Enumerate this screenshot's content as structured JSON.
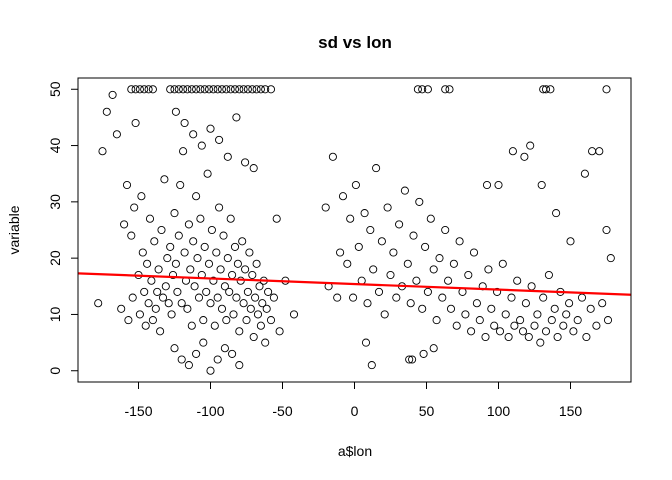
{
  "chart_data": {
    "type": "scatter",
    "title": "sd  vs lon",
    "xlabel": "a$lon",
    "ylabel": "variable",
    "xlim": [
      -192,
      192
    ],
    "ylim": [
      -2,
      52
    ],
    "x_ticks": [
      -150,
      -100,
      -50,
      0,
      50,
      100,
      150
    ],
    "y_ticks": [
      0,
      10,
      20,
      30,
      40,
      50
    ],
    "grid": false,
    "legend": "none",
    "marker": "open-circle",
    "fit_line": {
      "color": "#ff0000",
      "x": [
        -192,
        192
      ],
      "y": [
        17.3,
        13.5
      ]
    },
    "point_color": "#000000",
    "series": [
      {
        "values": [
          [
            -178,
            12
          ],
          [
            -175,
            39
          ],
          [
            -172,
            46
          ],
          [
            -168,
            49
          ],
          [
            -165,
            42
          ],
          [
            -162,
            11
          ],
          [
            -160,
            26
          ],
          [
            -158,
            33
          ],
          [
            -157,
            9
          ],
          [
            -155,
            24
          ],
          [
            -154,
            13
          ],
          [
            -153,
            29
          ],
          [
            -152,
            44
          ],
          [
            -150,
            17
          ],
          [
            -149,
            10
          ],
          [
            -148,
            31
          ],
          [
            -147,
            21
          ],
          [
            -146,
            14
          ],
          [
            -145,
            8
          ],
          [
            -144,
            19
          ],
          [
            -143,
            12
          ],
          [
            -142,
            27
          ],
          [
            -141,
            16
          ],
          [
            -140,
            9
          ],
          [
            -139,
            23
          ],
          [
            -138,
            11
          ],
          [
            -137,
            14
          ],
          [
            -136,
            18
          ],
          [
            -135,
            7
          ],
          [
            -134,
            25
          ],
          [
            -133,
            13
          ],
          [
            -132,
            34
          ],
          [
            -131,
            15
          ],
          [
            -130,
            20
          ],
          [
            -129,
            12
          ],
          [
            -128,
            22
          ],
          [
            -127,
            10
          ],
          [
            -126,
            17
          ],
          [
            -125,
            28
          ],
          [
            -124,
            19
          ],
          [
            -123,
            14
          ],
          [
            -122,
            24
          ],
          [
            -121,
            33
          ],
          [
            -120,
            12
          ],
          [
            -119,
            39
          ],
          [
            -118,
            21
          ],
          [
            -117,
            16
          ],
          [
            -116,
            11
          ],
          [
            -115,
            26
          ],
          [
            -114,
            18
          ],
          [
            -113,
            8
          ],
          [
            -112,
            23
          ],
          [
            -111,
            15
          ],
          [
            -110,
            31
          ],
          [
            -109,
            20
          ],
          [
            -108,
            13
          ],
          [
            -107,
            27
          ],
          [
            -106,
            17
          ],
          [
            -105,
            9
          ],
          [
            -104,
            22
          ],
          [
            -103,
            14
          ],
          [
            -102,
            35
          ],
          [
            -101,
            19
          ],
          [
            -100,
            12
          ],
          [
            -99,
            25
          ],
          [
            -98,
            16
          ],
          [
            -97,
            8
          ],
          [
            -96,
            21
          ],
          [
            -95,
            13
          ],
          [
            -94,
            29
          ],
          [
            -93,
            18
          ],
          [
            -92,
            11
          ],
          [
            -91,
            24
          ],
          [
            -90,
            15
          ],
          [
            -89,
            9
          ],
          [
            -88,
            20
          ],
          [
            -87,
            14
          ],
          [
            -86,
            27
          ],
          [
            -85,
            17
          ],
          [
            -84,
            10
          ],
          [
            -83,
            22
          ],
          [
            -82,
            13
          ],
          [
            -81,
            19
          ],
          [
            -80,
            7
          ],
          [
            -79,
            16
          ],
          [
            -78,
            23
          ],
          [
            -77,
            12
          ],
          [
            -76,
            18
          ],
          [
            -75,
            9
          ],
          [
            -74,
            14
          ],
          [
            -73,
            21
          ],
          [
            -72,
            11
          ],
          [
            -71,
            17
          ],
          [
            -70,
            6
          ],
          [
            -69,
            13
          ],
          [
            -68,
            19
          ],
          [
            -67,
            10
          ],
          [
            -66,
            15
          ],
          [
            -65,
            8
          ],
          [
            -64,
            12
          ],
          [
            -63,
            16
          ],
          [
            -62,
            5
          ],
          [
            -61,
            11
          ],
          [
            -60,
            14
          ],
          [
            -58,
            9
          ],
          [
            -56,
            13
          ],
          [
            -54,
            27
          ],
          [
            -52,
            7
          ],
          [
            -48,
            16
          ],
          [
            -42,
            10
          ],
          [
            -128,
            50
          ],
          [
            -125,
            50
          ],
          [
            -122,
            50
          ],
          [
            -119,
            50
          ],
          [
            -116,
            50
          ],
          [
            -113,
            50
          ],
          [
            -110,
            50
          ],
          [
            -107,
            50
          ],
          [
            -104,
            50
          ],
          [
            -101,
            50
          ],
          [
            -98,
            50
          ],
          [
            -95,
            50
          ],
          [
            -92,
            50
          ],
          [
            -89,
            50
          ],
          [
            -86,
            50
          ],
          [
            -83,
            50
          ],
          [
            -80,
            50
          ],
          [
            -77,
            50
          ],
          [
            -74,
            50
          ],
          [
            -71,
            50
          ],
          [
            -155,
            50
          ],
          [
            -152,
            50
          ],
          [
            -149,
            50
          ],
          [
            -146,
            50
          ],
          [
            -143,
            50
          ],
          [
            -140,
            50
          ],
          [
            -68,
            50
          ],
          [
            -65,
            50
          ],
          [
            -62,
            50
          ],
          [
            -58,
            50
          ],
          [
            -124,
            46
          ],
          [
            -118,
            44
          ],
          [
            -112,
            42
          ],
          [
            -106,
            40
          ],
          [
            -100,
            43
          ],
          [
            -94,
            41
          ],
          [
            -88,
            38
          ],
          [
            -82,
            45
          ],
          [
            -76,
            37
          ],
          [
            -70,
            36
          ],
          [
            -125,
            4
          ],
          [
            -120,
            2
          ],
          [
            -115,
            1
          ],
          [
            -110,
            3
          ],
          [
            -105,
            5
          ],
          [
            -100,
            0
          ],
          [
            -95,
            2
          ],
          [
            -90,
            4
          ],
          [
            -85,
            3
          ],
          [
            -80,
            1
          ],
          [
            -20,
            29
          ],
          [
            -18,
            15
          ],
          [
            -15,
            38
          ],
          [
            -12,
            13
          ],
          [
            -10,
            21
          ],
          [
            -8,
            31
          ],
          [
            -5,
            19
          ],
          [
            -3,
            27
          ],
          [
            -1,
            13
          ],
          [
            1,
            33
          ],
          [
            3,
            22
          ],
          [
            5,
            16
          ],
          [
            7,
            28
          ],
          [
            9,
            12
          ],
          [
            11,
            25
          ],
          [
            13,
            18
          ],
          [
            15,
            36
          ],
          [
            17,
            14
          ],
          [
            19,
            23
          ],
          [
            21,
            10
          ],
          [
            23,
            29
          ],
          [
            25,
            17
          ],
          [
            27,
            21
          ],
          [
            29,
            13
          ],
          [
            31,
            26
          ],
          [
            33,
            15
          ],
          [
            35,
            32
          ],
          [
            37,
            19
          ],
          [
            39,
            12
          ],
          [
            41,
            24
          ],
          [
            43,
            16
          ],
          [
            45,
            30
          ],
          [
            47,
            11
          ],
          [
            49,
            22
          ],
          [
            51,
            14
          ],
          [
            53,
            27
          ],
          [
            55,
            18
          ],
          [
            57,
            9
          ],
          [
            59,
            20
          ],
          [
            61,
            13
          ],
          [
            63,
            25
          ],
          [
            65,
            16
          ],
          [
            67,
            11
          ],
          [
            69,
            19
          ],
          [
            71,
            8
          ],
          [
            73,
            23
          ],
          [
            75,
            14
          ],
          [
            77,
            10
          ],
          [
            79,
            17
          ],
          [
            81,
            7
          ],
          [
            83,
            21
          ],
          [
            85,
            12
          ],
          [
            87,
            9
          ],
          [
            89,
            15
          ],
          [
            91,
            6
          ],
          [
            93,
            18
          ],
          [
            95,
            11
          ],
          [
            97,
            8
          ],
          [
            99,
            14
          ],
          [
            101,
            7
          ],
          [
            103,
            19
          ],
          [
            105,
            10
          ],
          [
            107,
            6
          ],
          [
            109,
            13
          ],
          [
            111,
            8
          ],
          [
            113,
            16
          ],
          [
            115,
            9
          ],
          [
            117,
            7
          ],
          [
            119,
            12
          ],
          [
            121,
            6
          ],
          [
            123,
            15
          ],
          [
            125,
            8
          ],
          [
            127,
            10
          ],
          [
            129,
            5
          ],
          [
            131,
            13
          ],
          [
            133,
            7
          ],
          [
            135,
            17
          ],
          [
            137,
            9
          ],
          [
            139,
            11
          ],
          [
            141,
            6
          ],
          [
            143,
            14
          ],
          [
            145,
            8
          ],
          [
            147,
            10
          ],
          [
            149,
            12
          ],
          [
            152,
            7
          ],
          [
            155,
            9
          ],
          [
            158,
            13
          ],
          [
            161,
            6
          ],
          [
            164,
            11
          ],
          [
            168,
            8
          ],
          [
            172,
            12
          ],
          [
            176,
            9
          ],
          [
            178,
            20
          ],
          [
            175,
            25
          ],
          [
            170,
            39
          ],
          [
            165,
            39
          ],
          [
            160,
            35
          ],
          [
            150,
            23
          ],
          [
            140,
            28
          ],
          [
            130,
            33
          ],
          [
            44,
            50
          ],
          [
            47,
            50
          ],
          [
            51,
            50
          ],
          [
            63,
            50
          ],
          [
            66,
            50
          ],
          [
            131,
            50
          ],
          [
            133,
            50
          ],
          [
            136,
            50
          ],
          [
            175,
            50
          ],
          [
            122,
            40
          ],
          [
            38,
            2
          ],
          [
            40,
            2
          ],
          [
            48,
            3
          ],
          [
            55,
            4
          ],
          [
            12,
            1
          ],
          [
            8,
            5
          ],
          [
            92,
            33
          ],
          [
            100,
            33
          ],
          [
            110,
            39
          ],
          [
            118,
            38
          ]
        ]
      }
    ]
  }
}
